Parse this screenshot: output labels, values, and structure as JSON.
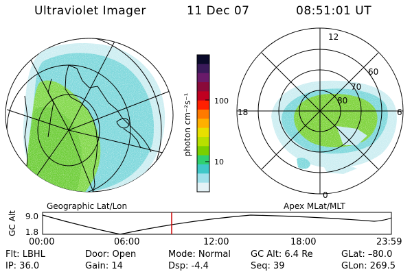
{
  "header": {
    "title": "Ultraviolet Imager",
    "date": "11 Dec 07",
    "time": "08:51:01 UT"
  },
  "colorbar": {
    "label": "photon cm⁻²s⁻¹",
    "ticks": [
      "100",
      "10"
    ],
    "colors": [
      "#0a0a2a",
      "#3a1a5a",
      "#6a1a6a",
      "#8a0a3a",
      "#c00020",
      "#ff2000",
      "#ff7a00",
      "#ffb000",
      "#e8e000",
      "#b8e000",
      "#7ad000",
      "#30d070",
      "#40c8c8",
      "#a0e0ea",
      "#e4f2f6"
    ]
  },
  "geo_map": {
    "caption": "Geographic Lat/Lon"
  },
  "polar_map": {
    "caption": "Apex MLat/MLT",
    "mlt_labels": [
      "12",
      "18",
      "6",
      "0"
    ],
    "lat_labels": [
      "60",
      "70",
      "80"
    ]
  },
  "altitude_plot": {
    "ylabel": "GC Alt",
    "yticks": [
      "9.0",
      "1.8"
    ],
    "xticks": [
      "00:00",
      "06:00",
      "12:00",
      "18:00",
      "23:59"
    ],
    "current_time_fraction": 0.37,
    "marker_color": "#cc0000"
  },
  "status": {
    "filter": "Flt:  LBHL",
    "ip": "IP:  36.0",
    "door": "Door:  Open",
    "gain": "Gain:  14",
    "mode": "Mode:  Normal",
    "dsp": "Dsp:      -4.4",
    "gc_alt": "GC Alt:  6.4 Re",
    "seq": "Seq:  39",
    "glat": "GLat:  –80.0",
    "glon": "GLon:  269.5"
  }
}
